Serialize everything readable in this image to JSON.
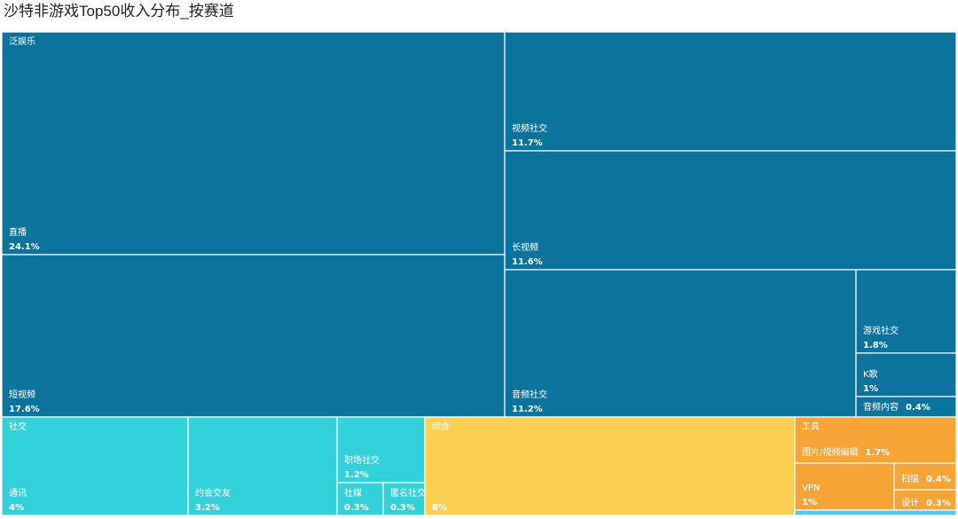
{
  "chart_data": {
    "type": "treemap",
    "title": "沙特非游戏Top50收入分布_按赛道",
    "groups": [
      {
        "name": "泛娱乐",
        "color": "#0C739C",
        "items": [
          {
            "name": "直播",
            "value": 24.1,
            "value_label": "24.1%"
          },
          {
            "name": "短视频",
            "value": 17.6,
            "value_label": "17.6%"
          },
          {
            "name": "视频社交",
            "value": 11.7,
            "value_label": "11.7%"
          },
          {
            "name": "长视频",
            "value": 11.6,
            "value_label": "11.6%"
          },
          {
            "name": "音频社交",
            "value": 11.2,
            "value_label": "11.2%"
          },
          {
            "name": "游戏社交",
            "value": 1.8,
            "value_label": "1.8%"
          },
          {
            "name": "K歌",
            "value": 1.0,
            "value_label": "1%"
          },
          {
            "name": "音频内容",
            "value": 0.4,
            "value_label": "0.4%"
          }
        ]
      },
      {
        "name": "社交",
        "color": "#33D1D9",
        "items": [
          {
            "name": "通讯",
            "value": 4.0,
            "value_label": "4%"
          },
          {
            "name": "约会交友",
            "value": 3.2,
            "value_label": "3.2%"
          },
          {
            "name": "职场社交",
            "value": 1.2,
            "value_label": "1.2%"
          },
          {
            "name": "社媒",
            "value": 0.3,
            "value_label": "0.3%"
          },
          {
            "name": "匿名社交",
            "value": 0.3,
            "value_label": "0.3%"
          }
        ]
      },
      {
        "name": "综合",
        "color": "#FDCF53",
        "items": [
          {
            "name": "",
            "value": 8.0,
            "value_label": "8%"
          }
        ]
      },
      {
        "name": "工具",
        "color": "#F7A437",
        "items": [
          {
            "name": "图片/视频编辑",
            "value": 1.7,
            "value_label": "1.7%"
          },
          {
            "name": "VPN",
            "value": 1.0,
            "value_label": "1%"
          },
          {
            "name": "扫描",
            "value": 0.4,
            "value_label": "0.4%"
          },
          {
            "name": "设计",
            "value": 0.3,
            "value_label": "0.3%"
          }
        ]
      },
      {
        "name": "",
        "color": "#5BC7F0",
        "items": [
          {
            "name": "",
            "value": 0.1,
            "value_label": ""
          }
        ]
      }
    ]
  }
}
